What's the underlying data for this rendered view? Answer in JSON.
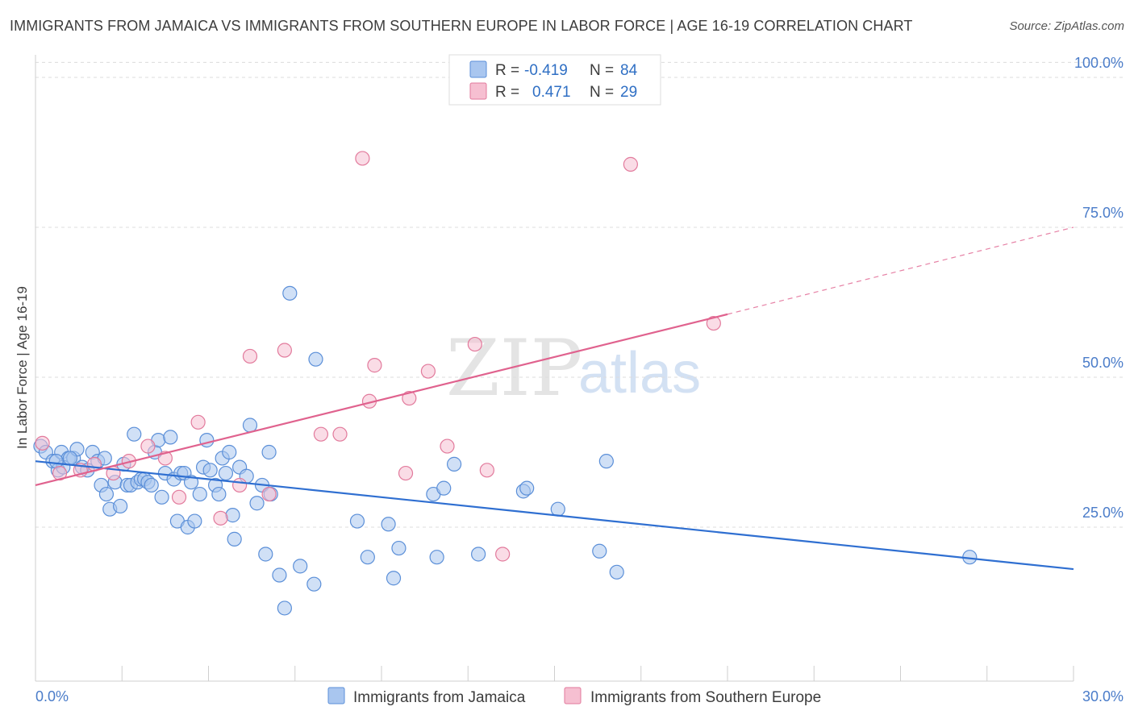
{
  "title": "IMMIGRANTS FROM JAMAICA VS IMMIGRANTS FROM SOUTHERN EUROPE IN LABOR FORCE | AGE 16-19 CORRELATION CHART",
  "source": "Source: ZipAtlas.com",
  "watermark": {
    "zip": "ZIP",
    "atlas": "atlas"
  },
  "legend": {
    "rows": [
      {
        "r_label": "R =",
        "r_value": "-0.419",
        "n_label": "N =",
        "n_value": "84",
        "color": "#a9c6ef",
        "stroke": "#5b8fd8"
      },
      {
        "r_label": "R =",
        "r_value": "0.471",
        "n_label": "N =",
        "n_value": "29",
        "color": "#f6bfd1",
        "stroke": "#e27a9c"
      }
    ]
  },
  "bottom_legend": [
    {
      "label": "Immigrants from Jamaica",
      "color": "#a9c6ef",
      "stroke": "#5b8fd8"
    },
    {
      "label": "Immigrants from Southern Europe",
      "color": "#f6bfd1",
      "stroke": "#e27a9c"
    }
  ],
  "chart_data": {
    "type": "scatter",
    "title": "IMMIGRANTS FROM JAMAICA VS IMMIGRANTS FROM SOUTHERN EUROPE IN LABOR FORCE | AGE 16-19 CORRELATION CHART",
    "xlabel": "",
    "ylabel": "In Labor Force | Age 16-19",
    "xlim": [
      0,
      30
    ],
    "ylim": [
      0,
      105
    ],
    "x_tick_labels": [
      "0.0%",
      "30.0%"
    ],
    "y_ticks": [
      25,
      50,
      75,
      100
    ],
    "y_tick_labels": [
      "25.0%",
      "50.0%",
      "75.0%",
      "100.0%"
    ],
    "grid": "horizontal dashed",
    "legend_position": "top-center",
    "series": [
      {
        "name": "Immigrants from Jamaica",
        "color": "#5b8fd8",
        "fill": "#a9c6ef",
        "trend": {
          "x": [
            0,
            30
          ],
          "y": [
            36.0,
            18.0
          ],
          "color": "#2f6fd1"
        },
        "points": [
          [
            0.15,
            38.5
          ],
          [
            0.3,
            37.5
          ],
          [
            0.5,
            36.0
          ],
          [
            0.65,
            34.5
          ],
          [
            0.75,
            37.5
          ],
          [
            0.95,
            36.5
          ],
          [
            1.1,
            36.5
          ],
          [
            1.2,
            38.0
          ],
          [
            1.35,
            35.0
          ],
          [
            1.5,
            34.5
          ],
          [
            1.65,
            37.5
          ],
          [
            1.8,
            36.0
          ],
          [
            1.9,
            32.0
          ],
          [
            2.05,
            30.5
          ],
          [
            2.15,
            28.0
          ],
          [
            2.3,
            32.5
          ],
          [
            2.45,
            28.5
          ],
          [
            2.55,
            35.5
          ],
          [
            2.65,
            32.0
          ],
          [
            2.75,
            32.0
          ],
          [
            2.85,
            40.5
          ],
          [
            2.95,
            32.5
          ],
          [
            3.05,
            33.0
          ],
          [
            3.15,
            33.0
          ],
          [
            3.25,
            32.5
          ],
          [
            3.35,
            32.0
          ],
          [
            3.45,
            37.5
          ],
          [
            3.55,
            39.5
          ],
          [
            3.65,
            30.0
          ],
          [
            3.75,
            34.0
          ],
          [
            3.9,
            40.0
          ],
          [
            4.0,
            33.0
          ],
          [
            4.1,
            26.0
          ],
          [
            4.2,
            34.0
          ],
          [
            4.3,
            34.0
          ],
          [
            4.4,
            25.0
          ],
          [
            4.5,
            32.5
          ],
          [
            4.6,
            26.0
          ],
          [
            4.75,
            30.5
          ],
          [
            4.85,
            35.0
          ],
          [
            4.95,
            39.5
          ],
          [
            5.05,
            34.5
          ],
          [
            5.2,
            32.0
          ],
          [
            5.4,
            36.5
          ],
          [
            5.5,
            34.0
          ],
          [
            5.6,
            37.5
          ],
          [
            5.7,
            27.0
          ],
          [
            5.75,
            23.0
          ],
          [
            5.9,
            35.0
          ],
          [
            6.1,
            33.5
          ],
          [
            6.2,
            42.0
          ],
          [
            6.4,
            29.0
          ],
          [
            6.55,
            32.0
          ],
          [
            6.65,
            20.5
          ],
          [
            6.75,
            37.5
          ],
          [
            6.8,
            30.5
          ],
          [
            7.05,
            17.0
          ],
          [
            7.2,
            11.5
          ],
          [
            7.35,
            64.0
          ],
          [
            7.65,
            18.5
          ],
          [
            8.05,
            15.5
          ],
          [
            8.1,
            53.0
          ],
          [
            9.3,
            26.0
          ],
          [
            9.6,
            20.0
          ],
          [
            10.2,
            25.5
          ],
          [
            10.35,
            16.5
          ],
          [
            10.5,
            21.5
          ],
          [
            11.5,
            30.5
          ],
          [
            11.6,
            20.0
          ],
          [
            11.8,
            31.5
          ],
          [
            12.1,
            35.5
          ],
          [
            12.8,
            20.5
          ],
          [
            14.1,
            31.0
          ],
          [
            14.2,
            31.5
          ],
          [
            15.1,
            28.0
          ],
          [
            16.3,
            21.0
          ],
          [
            16.5,
            36.0
          ],
          [
            16.8,
            17.5
          ],
          [
            27.0,
            20.0
          ],
          [
            0.8,
            35.0
          ],
          [
            1.0,
            36.5
          ],
          [
            2.0,
            36.5
          ],
          [
            0.6,
            36.0
          ],
          [
            5.3,
            30.5
          ]
        ]
      },
      {
        "name": "Immigrants from Southern Europe",
        "color": "#e27a9c",
        "fill": "#f6bfd1",
        "trend": {
          "x": [
            0,
            20
          ],
          "y": [
            32.0,
            60.5
          ],
          "dashed_extension_to": [
            30,
            75.0
          ],
          "color": "#e0628e"
        },
        "points": [
          [
            0.2,
            39.0
          ],
          [
            0.7,
            34.0
          ],
          [
            1.3,
            34.5
          ],
          [
            1.7,
            35.5
          ],
          [
            2.25,
            34.0
          ],
          [
            2.7,
            36.0
          ],
          [
            3.25,
            38.5
          ],
          [
            3.75,
            36.5
          ],
          [
            4.15,
            30.0
          ],
          [
            4.7,
            42.5
          ],
          [
            5.35,
            26.5
          ],
          [
            5.9,
            32.0
          ],
          [
            6.2,
            53.5
          ],
          [
            6.75,
            30.5
          ],
          [
            7.2,
            54.5
          ],
          [
            8.25,
            40.5
          ],
          [
            8.8,
            40.5
          ],
          [
            9.45,
            86.5
          ],
          [
            9.65,
            46.0
          ],
          [
            9.8,
            52.0
          ],
          [
            10.7,
            34.0
          ],
          [
            10.8,
            46.5
          ],
          [
            11.35,
            51.0
          ],
          [
            11.9,
            38.5
          ],
          [
            12.7,
            55.5
          ],
          [
            13.05,
            34.5
          ],
          [
            13.5,
            20.5
          ],
          [
            17.2,
            85.5
          ],
          [
            19.6,
            59.0
          ]
        ]
      }
    ]
  }
}
